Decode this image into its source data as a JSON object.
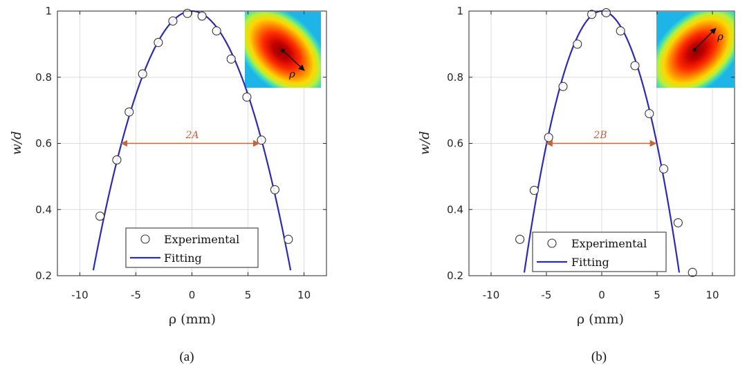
{
  "chart_data": [
    {
      "type": "scatter",
      "panel_label": "(a)",
      "xlabel": "ρ (mm)",
      "ylabel": "w/d",
      "xlim": [
        -12,
        12
      ],
      "ylim": [
        0.2,
        1.0
      ],
      "xticks": [
        -10,
        -5,
        0,
        5,
        10
      ],
      "yticks": [
        0.2,
        0.4,
        0.6,
        0.8,
        1.0
      ],
      "xtick_labels": [
        "-10",
        "-5",
        "0",
        "5",
        "10"
      ],
      "ytick_labels": [
        "0.2",
        "0.4",
        "0.6",
        "0.8",
        "1"
      ],
      "grid": true,
      "legend": {
        "position": "bottom-right",
        "entries": [
          "Experimental",
          "Fitting"
        ]
      },
      "series": [
        {
          "name": "Experimental",
          "marker": "open-circle",
          "x": [
            -8.2,
            -6.7,
            -5.6,
            -4.4,
            -3.0,
            -1.7,
            -0.4,
            0.9,
            2.2,
            3.5,
            4.9,
            6.2,
            7.4,
            8.6
          ],
          "y": [
            0.38,
            0.55,
            0.695,
            0.81,
            0.905,
            0.97,
            0.993,
            0.985,
            0.94,
            0.855,
            0.74,
            0.61,
            0.46,
            0.31
          ]
        },
        {
          "name": "Fitting",
          "type": "line",
          "color": "#2a2ab5",
          "model": "quadratic",
          "vertex_x": 0.0,
          "vertex_y": 1.0,
          "curvature": 0.01012
        }
      ],
      "annotation": {
        "text": "2A",
        "y": 0.6,
        "x_from": -6.3,
        "x_to": 6.0,
        "color": "#c8643c"
      },
      "inset": {
        "label": "ρ",
        "arrow": "down-right"
      }
    },
    {
      "type": "scatter",
      "panel_label": "(b)",
      "xlabel": "ρ (mm)",
      "ylabel": "w/d",
      "xlim": [
        -12,
        12
      ],
      "ylim": [
        0.2,
        1.0
      ],
      "xticks": [
        -10,
        -5,
        0,
        5,
        10
      ],
      "yticks": [
        0.2,
        0.4,
        0.6,
        0.8,
        1.0
      ],
      "xtick_labels": [
        "-10",
        "-5",
        "0",
        "5",
        "10"
      ],
      "ytick_labels": [
        "0.2",
        "0.4",
        "0.6",
        "0.8",
        "1"
      ],
      "grid": true,
      "legend": {
        "position": "bottom-right",
        "entries": [
          "Experimental",
          "Fitting"
        ]
      },
      "series": [
        {
          "name": "Experimental",
          "marker": "open-circle",
          "x": [
            -7.4,
            -6.1,
            -4.8,
            -3.5,
            -2.2,
            -0.9,
            0.4,
            1.7,
            3.0,
            4.3,
            5.6,
            6.9,
            8.2
          ],
          "y": [
            0.31,
            0.458,
            0.618,
            0.772,
            0.9,
            0.99,
            0.995,
            0.94,
            0.835,
            0.69,
            0.523,
            0.36,
            0.21
          ],
          "note": "one point near (8.2, 0.21)"
        },
        {
          "name": "Fitting",
          "type": "line",
          "color": "#2a2ab5",
          "model": "quadratic",
          "vertex_x": 0.0,
          "vertex_y": 1.0,
          "curvature": 0.01613
        }
      ],
      "annotation": {
        "text": "2B",
        "y": 0.6,
        "x_from": -5.0,
        "x_to": 4.9,
        "color": "#c8643c"
      },
      "inset": {
        "label": "ρ",
        "arrow": "up-right"
      }
    }
  ],
  "colors": {
    "axis": "#262626",
    "grid": "#dcdcdc",
    "fit_line": "#2a2ab5",
    "marker_edge": "#333333",
    "annotation": "#c8643c"
  }
}
